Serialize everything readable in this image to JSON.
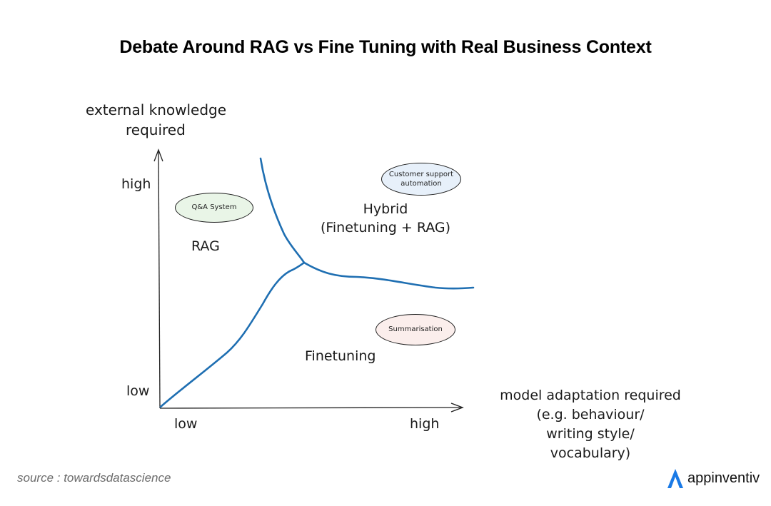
{
  "title": "Debate Around RAG vs Fine Tuning with Real Business Context",
  "y_axis": {
    "label_line1": "external knowledge",
    "label_line2": "required",
    "high": "high",
    "low": "low"
  },
  "x_axis": {
    "label_line1": "model adaptation required",
    "label_line2": "(e.g. behaviour/",
    "label_line3": "writing style/",
    "label_line4": "vocabulary)",
    "low": "low",
    "high": "high"
  },
  "regions": {
    "rag": "RAG",
    "hybrid_line1": "Hybrid",
    "hybrid_line2": "(Finetuning + RAG)",
    "finetuning": "Finetuning"
  },
  "examples": {
    "qa": "Q&A System",
    "customer_line1": "Customer support",
    "customer_line2": "automation",
    "summarisation": "Summarisation"
  },
  "colors": {
    "boundary": "#1f6fb2",
    "qa_fill": "#e9f5e7",
    "customer_fill": "#e7f0fa",
    "summarisation_fill": "#fbeeec"
  },
  "footer": {
    "source": "source : towardsdatascience",
    "brand": "appinventiv",
    "brand_color": "#1a7ae6"
  }
}
